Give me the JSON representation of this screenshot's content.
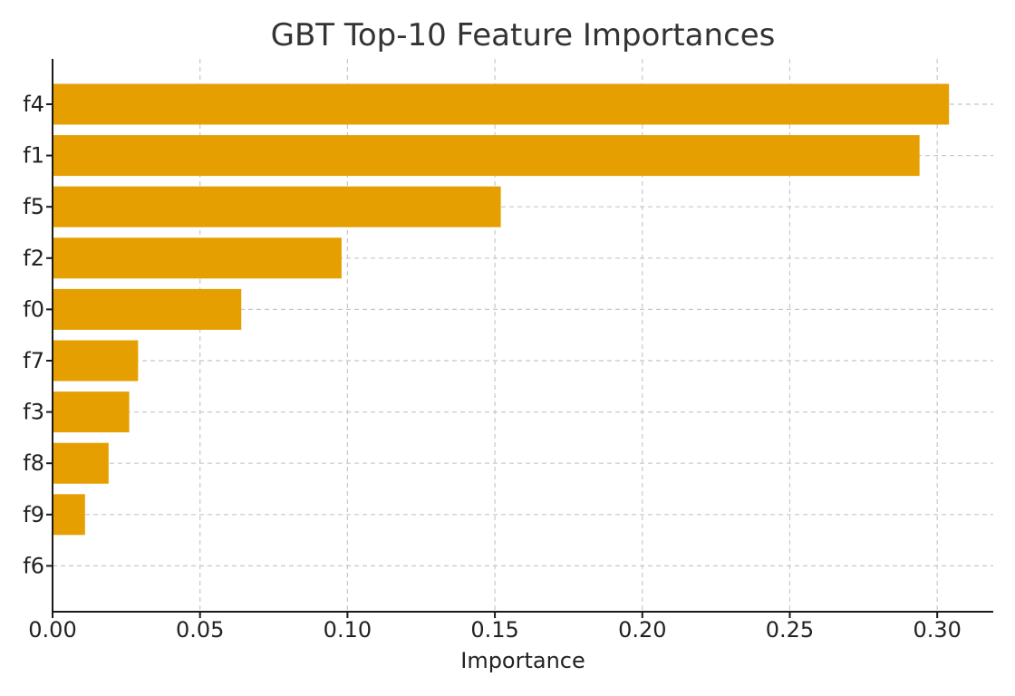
{
  "chart_data": {
    "type": "bar",
    "orientation": "horizontal",
    "title": "GBT Top-10 Feature Importances",
    "xlabel": "Importance",
    "ylabel": "",
    "categories": [
      "f4",
      "f1",
      "f5",
      "f2",
      "f0",
      "f7",
      "f3",
      "f8",
      "f9",
      "f6"
    ],
    "values": [
      0.304,
      0.294,
      0.152,
      0.098,
      0.064,
      0.029,
      0.026,
      0.019,
      0.011,
      0.0
    ],
    "xlim": [
      0,
      0.319
    ],
    "xticks": [
      "0.00",
      "0.05",
      "0.10",
      "0.15",
      "0.20",
      "0.25",
      "0.30"
    ],
    "grid": true,
    "bar_color": "#E69F00"
  }
}
